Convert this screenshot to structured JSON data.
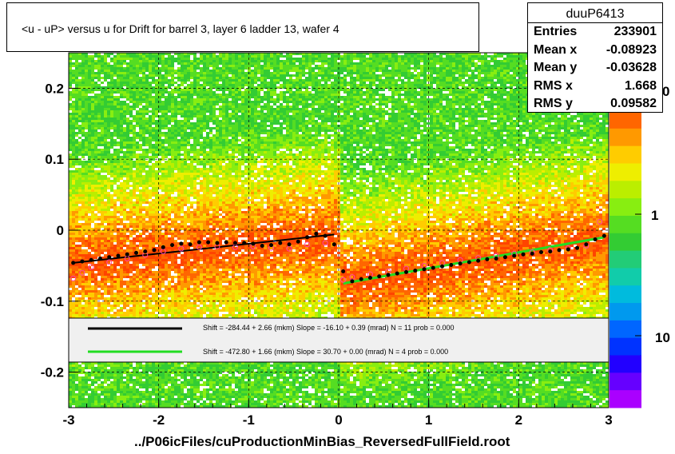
{
  "title": "<u - uP>       versus   u for Drift for barrel 3, layer 6 ladder 13, wafer 4",
  "xlabel": "../P06icFiles/cuProductionMinBias_ReversedFullField.root",
  "stats": {
    "name": "duuP6413",
    "rows": [
      {
        "key": "Entries",
        "value": "233901"
      },
      {
        "key": "Mean x",
        "value": "-0.08923"
      },
      {
        "key": "Mean y",
        "value": "-0.03628"
      },
      {
        "key": "RMS x",
        "value": "1.668"
      },
      {
        "key": "RMS y",
        "value": "0.09582"
      }
    ]
  },
  "fits": [
    {
      "color": "#000000",
      "text": "Shift =  -284.44 + 2.66 (mkm) Slope =   -16.10 + 0.39 (mrad)  N = 11 prob = 0.000"
    },
    {
      "color": "#22dd22",
      "text": "Shift =  -472.80 + 1.66 (mkm) Slope =    30.70 + 0.00 (mrad)  N = 4 prob = 0.000"
    }
  ],
  "chart_data": {
    "type": "heatmap",
    "xlim": [
      -3,
      3
    ],
    "ylim": [
      -0.25,
      0.25
    ],
    "x_ticks": [
      "-3",
      "-2",
      "-1",
      "0",
      "1",
      "2",
      "3"
    ],
    "y_ticks": [
      "0.2",
      "0.1",
      "0",
      "-0.1",
      "-0.2"
    ],
    "colorbar_ticks": [
      "1",
      "10"
    ],
    "colorbar_partial_top_label": "0",
    "profile_black": {
      "x": [
        -2.95,
        -2.85,
        -2.75,
        -2.65,
        -2.55,
        -2.45,
        -2.35,
        -2.25,
        -2.15,
        -2.05,
        -1.95,
        -1.85,
        -1.75,
        -1.65,
        -1.55,
        -1.45,
        -1.35,
        -1.25,
        -1.15,
        -1.05,
        -0.95,
        -0.85,
        -0.75,
        -0.65,
        -0.55,
        -0.45,
        -0.35,
        -0.25,
        -0.15,
        -0.05,
        0.05,
        0.15,
        0.25,
        0.35,
        0.45,
        0.55,
        0.65,
        0.75,
        0.85,
        0.95,
        1.05,
        1.15,
        1.25,
        1.35,
        1.45,
        1.55,
        1.65,
        1.75,
        1.85,
        1.95,
        2.05,
        2.15,
        2.25,
        2.35,
        2.45,
        2.55,
        2.65,
        2.75,
        2.85,
        2.95
      ],
      "y": [
        -0.046,
        -0.044,
        -0.042,
        -0.04,
        -0.038,
        -0.036,
        -0.034,
        -0.032,
        -0.03,
        -0.028,
        -0.024,
        -0.021,
        -0.019,
        -0.02,
        -0.017,
        -0.017,
        -0.018,
        -0.017,
        -0.018,
        -0.018,
        -0.019,
        -0.022,
        -0.021,
        -0.018,
        -0.02,
        -0.016,
        -0.01,
        -0.005,
        -0.008,
        -0.02,
        -0.058,
        -0.072,
        -0.069,
        -0.067,
        -0.065,
        -0.063,
        -0.061,
        -0.059,
        -0.057,
        -0.055,
        -0.053,
        -0.051,
        -0.049,
        -0.047,
        -0.045,
        -0.043,
        -0.041,
        -0.04,
        -0.038,
        -0.036,
        -0.034,
        -0.033,
        -0.031,
        -0.03,
        -0.028,
        -0.027,
        -0.025,
        -0.02,
        -0.013,
        -0.008
      ]
    },
    "profile_pink": {
      "x": [
        -2.95,
        -2.85,
        -2.75,
        -2.55,
        -2.35,
        -2.15,
        -1.95,
        -1.75,
        -1.55,
        -1.35,
        -1.15,
        -0.95,
        -0.75,
        -0.55,
        -0.35,
        -0.15,
        0.05,
        0.15,
        0.35,
        0.55,
        0.75,
        0.95,
        1.15,
        1.35,
        1.55,
        1.75,
        1.95,
        2.15,
        2.35,
        2.55,
        2.75,
        2.9
      ],
      "y": [
        -0.068,
        -0.06,
        -0.052,
        -0.045,
        -0.04,
        -0.035,
        -0.03,
        -0.026,
        -0.024,
        -0.023,
        -0.024,
        -0.023,
        -0.025,
        -0.026,
        -0.02,
        -0.018,
        -0.07,
        -0.066,
        -0.062,
        -0.058,
        -0.054,
        -0.05,
        -0.046,
        -0.042,
        -0.039,
        -0.036,
        -0.033,
        -0.031,
        -0.028,
        -0.025,
        -0.022,
        0.012
      ]
    },
    "fit_black_segments": [
      {
        "x": [
          -2.95,
          -0.05
        ],
        "y": [
          -0.046,
          -0.006
        ]
      }
    ],
    "fit_green_segments": [
      {
        "x": [
          0.05,
          2.95
        ],
        "y": [
          -0.075,
          -0.01
        ]
      }
    ]
  }
}
